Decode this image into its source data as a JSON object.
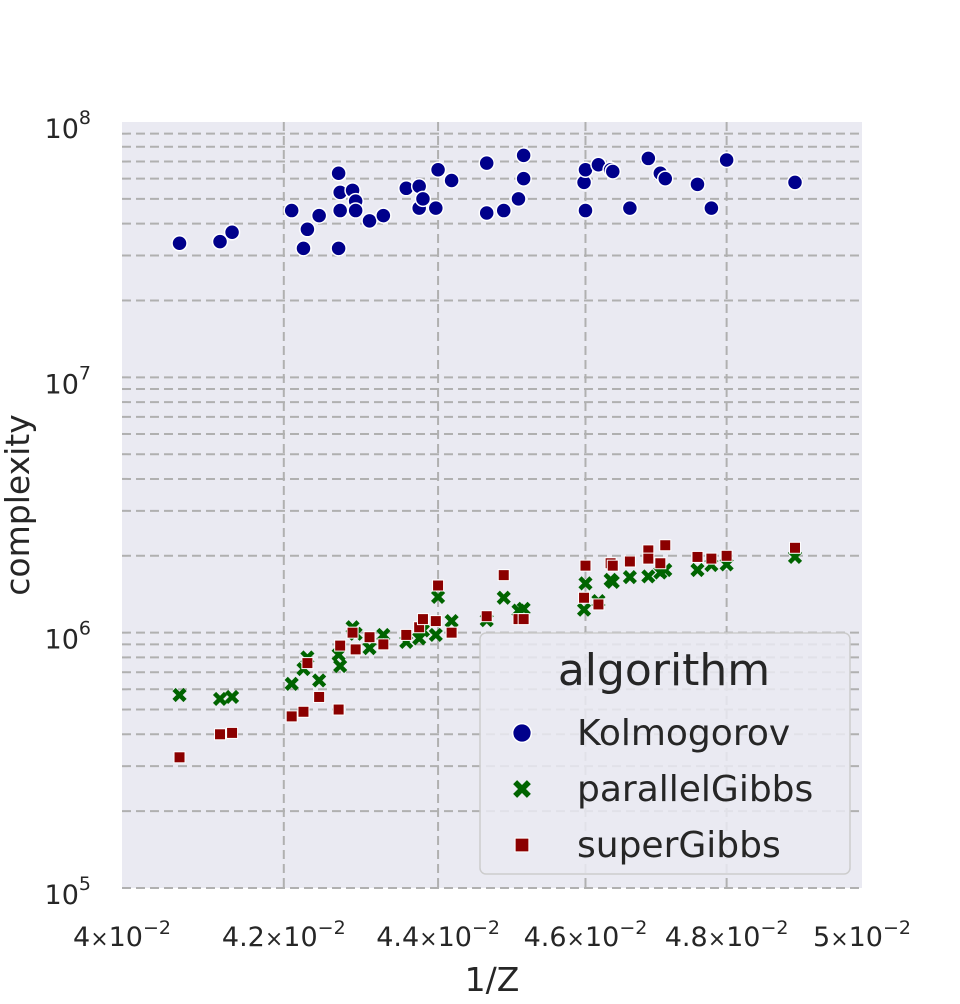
{
  "chart_data": {
    "type": "scatter",
    "title": "",
    "xlabel": "1/Z",
    "ylabel": "complexity",
    "xscale": "log",
    "yscale": "log",
    "xlim": [
      0.04,
      0.05
    ],
    "ylim": [
      100000,
      100000000
    ],
    "grid": true,
    "x_ticks": [
      {
        "base": "4",
        "mult": "×",
        "pow": "10",
        "exp": "−2"
      },
      {
        "base": "4.2",
        "mult": "×",
        "pow": "10",
        "exp": "−2"
      },
      {
        "base": "4.4",
        "mult": "×",
        "pow": "10",
        "exp": "−2"
      },
      {
        "base": "4.6",
        "mult": "×",
        "pow": "10",
        "exp": "−2"
      },
      {
        "base": "4.8",
        "mult": "×",
        "pow": "10",
        "exp": "−2"
      },
      {
        "base": "5",
        "mult": "×",
        "pow": "10",
        "exp": "−2"
      }
    ],
    "y_ticks": [
      {
        "pow": "10",
        "exp": "5"
      },
      {
        "pow": "10",
        "exp": "6"
      },
      {
        "pow": "10",
        "exp": "7"
      },
      {
        "pow": "10",
        "exp": "8"
      }
    ],
    "legend": {
      "title": "algorithm",
      "position": "lower-right"
    },
    "colors": {
      "Kolmogorov": "#00008b",
      "parallelGibbs": "#006400",
      "superGibbs": "#8b0000",
      "background": "#eaeaf2",
      "grid": "#b0b0b0"
    },
    "series": [
      {
        "name": "Kolmogorov",
        "marker": "circle",
        "points": [
          [
            0.0407,
            33500000
          ],
          [
            0.0412,
            34000000
          ],
          [
            0.04135,
            37000000
          ],
          [
            0.0421,
            45000000
          ],
          [
            0.04225,
            32000000
          ],
          [
            0.0423,
            38000000
          ],
          [
            0.04245,
            43000000
          ],
          [
            0.0427,
            32000000
          ],
          [
            0.0427,
            63000000
          ],
          [
            0.04272,
            53000000
          ],
          [
            0.04272,
            45000000
          ],
          [
            0.04288,
            54000000
          ],
          [
            0.04292,
            49000000
          ],
          [
            0.04292,
            45000000
          ],
          [
            0.0431,
            41000000
          ],
          [
            0.04328,
            43000000
          ],
          [
            0.04358,
            55000000
          ],
          [
            0.04375,
            56000000
          ],
          [
            0.04375,
            46000000
          ],
          [
            0.0438,
            50000000
          ],
          [
            0.04397,
            46000000
          ],
          [
            0.044,
            65000000
          ],
          [
            0.04418,
            59000000
          ],
          [
            0.04465,
            44000000
          ],
          [
            0.04465,
            69000000
          ],
          [
            0.04488,
            45000000
          ],
          [
            0.04508,
            50000000
          ],
          [
            0.04515,
            60000000
          ],
          [
            0.04515,
            74000000
          ],
          [
            0.04598,
            58000000
          ],
          [
            0.046,
            65000000
          ],
          [
            0.046,
            45000000
          ],
          [
            0.04618,
            68000000
          ],
          [
            0.04635,
            65000000
          ],
          [
            0.04638,
            64000000
          ],
          [
            0.04662,
            46000000
          ],
          [
            0.04688,
            72000000
          ],
          [
            0.04705,
            63000000
          ],
          [
            0.04712,
            60000000
          ],
          [
            0.04758,
            57000000
          ],
          [
            0.04778,
            46000000
          ],
          [
            0.048,
            71000000
          ],
          [
            0.049,
            58000000
          ]
        ]
      },
      {
        "name": "parallelGibbs",
        "marker": "x",
        "points": [
          [
            0.0407,
            570000
          ],
          [
            0.0412,
            550000
          ],
          [
            0.04135,
            560000
          ],
          [
            0.0421,
            630000
          ],
          [
            0.04225,
            720000
          ],
          [
            0.0423,
            800000
          ],
          [
            0.04245,
            650000
          ],
          [
            0.0427,
            820000
          ],
          [
            0.04272,
            740000
          ],
          [
            0.04288,
            1050000
          ],
          [
            0.04292,
            990000
          ],
          [
            0.0431,
            870000
          ],
          [
            0.04328,
            980000
          ],
          [
            0.04358,
            920000
          ],
          [
            0.04375,
            950000
          ],
          [
            0.0438,
            1020000
          ],
          [
            0.04397,
            980000
          ],
          [
            0.044,
            1380000
          ],
          [
            0.04418,
            1110000
          ],
          [
            0.04465,
            1120000
          ],
          [
            0.04488,
            1370000
          ],
          [
            0.04508,
            1220000
          ],
          [
            0.04515,
            1240000
          ],
          [
            0.04598,
            1230000
          ],
          [
            0.046,
            1560000
          ],
          [
            0.04618,
            1330000
          ],
          [
            0.04635,
            1610000
          ],
          [
            0.04638,
            1580000
          ],
          [
            0.04662,
            1650000
          ],
          [
            0.04688,
            1660000
          ],
          [
            0.04705,
            1720000
          ],
          [
            0.04712,
            1760000
          ],
          [
            0.04758,
            1760000
          ],
          [
            0.04778,
            1840000
          ],
          [
            0.048,
            1850000
          ],
          [
            0.049,
            1980000
          ]
        ]
      },
      {
        "name": "superGibbs",
        "marker": "square",
        "points": [
          [
            0.0407,
            325000
          ],
          [
            0.0412,
            400000
          ],
          [
            0.04135,
            405000
          ],
          [
            0.0421,
            470000
          ],
          [
            0.04225,
            490000
          ],
          [
            0.0423,
            760000
          ],
          [
            0.04245,
            560000
          ],
          [
            0.0427,
            500000
          ],
          [
            0.04272,
            890000
          ],
          [
            0.04288,
            1000000
          ],
          [
            0.04292,
            860000
          ],
          [
            0.0431,
            960000
          ],
          [
            0.04328,
            900000
          ],
          [
            0.04358,
            980000
          ],
          [
            0.04375,
            1050000
          ],
          [
            0.0438,
            1130000
          ],
          [
            0.04397,
            1110000
          ],
          [
            0.044,
            1530000
          ],
          [
            0.04418,
            1000000
          ],
          [
            0.04465,
            1160000
          ],
          [
            0.04488,
            1680000
          ],
          [
            0.04508,
            1130000
          ],
          [
            0.04515,
            1130000
          ],
          [
            0.04598,
            1370000
          ],
          [
            0.046,
            1830000
          ],
          [
            0.04618,
            1290000
          ],
          [
            0.04635,
            1870000
          ],
          [
            0.04638,
            1830000
          ],
          [
            0.04662,
            1900000
          ],
          [
            0.04688,
            2100000
          ],
          [
            0.04688,
            1950000
          ],
          [
            0.04705,
            1870000
          ],
          [
            0.04712,
            2200000
          ],
          [
            0.04758,
            1980000
          ],
          [
            0.04778,
            1950000
          ],
          [
            0.048,
            2000000
          ],
          [
            0.049,
            2150000
          ]
        ]
      }
    ]
  }
}
